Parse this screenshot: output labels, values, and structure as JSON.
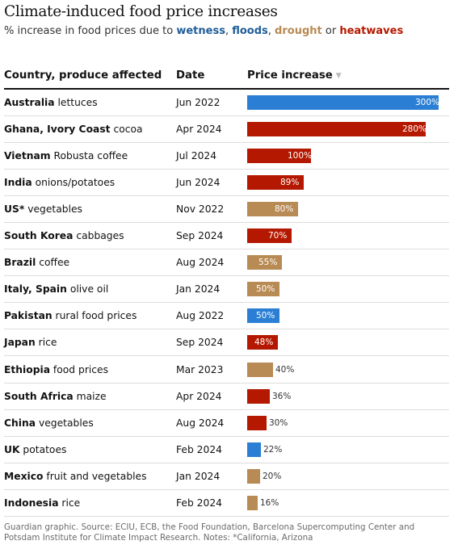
{
  "title": "Climate-induced food price increases",
  "subtitle": {
    "prefix": "% increase in food prices due to",
    "wetness": "wetness",
    "sep1": ",",
    "floods": "floods",
    "sep2": ",",
    "drought": "drought",
    "or": "or",
    "heatwaves": "heatwaves"
  },
  "colors": {
    "wetness": "#2a7fd4",
    "drought": "#b88a54",
    "heatwaves": "#b51800"
  },
  "columns": {
    "country": "Country, produce affected",
    "date": "Date",
    "price": "Price increase"
  },
  "sort_icon": "sort-descending-icon",
  "chart_data": {
    "type": "bar",
    "orientation": "horizontal",
    "xlim": [
      0,
      300
    ],
    "rows": [
      {
        "country": "Australia",
        "produce": "lettuces",
        "date": "Jun 2022",
        "value": 300,
        "label": "300%",
        "cause": "wetness"
      },
      {
        "country": "Ghana, Ivory Coast",
        "produce": "cocoa",
        "date": "Apr 2024",
        "value": 280,
        "label": "280%",
        "cause": "heatwaves"
      },
      {
        "country": "Vietnam",
        "produce": "Robusta coffee",
        "date": "Jul 2024",
        "value": 100,
        "label": "100%",
        "cause": "heatwaves"
      },
      {
        "country": "India",
        "produce": "onions/potatoes",
        "date": "Jun 2024",
        "value": 89,
        "label": "89%",
        "cause": "heatwaves"
      },
      {
        "country": "US*",
        "produce": "vegetables",
        "date": "Nov 2022",
        "value": 80,
        "label": "80%",
        "cause": "drought"
      },
      {
        "country": "South Korea",
        "produce": "cabbages",
        "date": "Sep 2024",
        "value": 70,
        "label": "70%",
        "cause": "heatwaves"
      },
      {
        "country": "Brazil",
        "produce": "coffee",
        "date": "Aug 2024",
        "value": 55,
        "label": "55%",
        "cause": "drought"
      },
      {
        "country": "Italy, Spain",
        "produce": "olive oil",
        "date": "Jan 2024",
        "value": 50,
        "label": "50%",
        "cause": "drought"
      },
      {
        "country": "Pakistan",
        "produce": "rural food prices",
        "date": "Aug 2022",
        "value": 50,
        "label": "50%",
        "cause": "wetness"
      },
      {
        "country": "Japan",
        "produce": "rice",
        "date": "Sep 2024",
        "value": 48,
        "label": "48%",
        "cause": "heatwaves"
      },
      {
        "country": "Ethiopia",
        "produce": "food prices",
        "date": "Mar 2023",
        "value": 40,
        "label": "40%",
        "cause": "drought"
      },
      {
        "country": "South Africa",
        "produce": "maize",
        "date": "Apr 2024",
        "value": 36,
        "label": "36%",
        "cause": "heatwaves"
      },
      {
        "country": "China",
        "produce": "vegetables",
        "date": "Aug 2024",
        "value": 30,
        "label": "30%",
        "cause": "heatwaves"
      },
      {
        "country": "UK",
        "produce": "potatoes",
        "date": "Feb 2024",
        "value": 22,
        "label": "22%",
        "cause": "wetness"
      },
      {
        "country": "Mexico",
        "produce": "fruit and vegetables",
        "date": "Jan 2024",
        "value": 20,
        "label": "20%",
        "cause": "drought"
      },
      {
        "country": "Indonesia",
        "produce": "rice",
        "date": "Feb 2024",
        "value": 16,
        "label": "16%",
        "cause": "drought"
      }
    ]
  },
  "footer": "Guardian graphic. Source: ECIU, ECB, the Food Foundation, Barcelona Supercomputing Center and Potsdam Institute for Climate Impact Research. Notes: *California, Arizona"
}
